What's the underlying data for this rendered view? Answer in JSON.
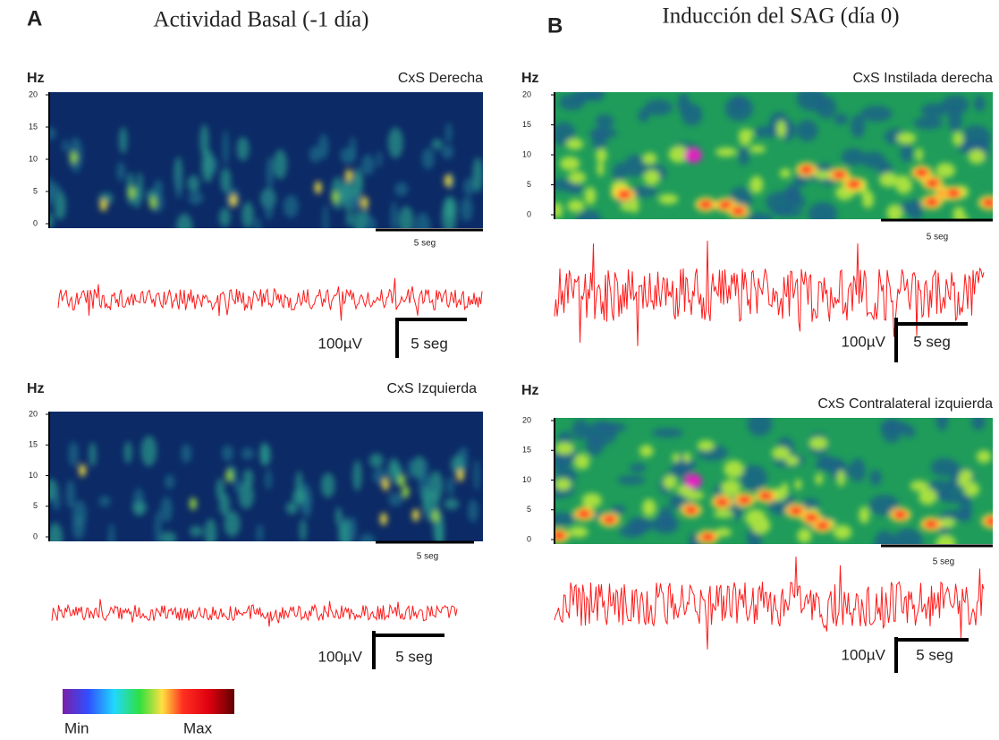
{
  "panels": [
    {
      "letter": "A",
      "title": "Actividad Basal (-1 día)",
      "plots": [
        {
          "unit": "Hz",
          "label": "CxS Derecha",
          "yticks": [
            20,
            15,
            10,
            5,
            0
          ],
          "spectrogram_scale": "5 seg",
          "amplitude_scale": "100µV",
          "time_scale": "5 seg"
        },
        {
          "unit": "Hz",
          "label": "CxS Izquierda",
          "yticks": [
            20,
            15,
            10,
            5,
            0
          ],
          "spectrogram_scale": "5 seg",
          "amplitude_scale": "100µV",
          "time_scale": "5 seg"
        }
      ]
    },
    {
      "letter": "B",
      "title": "Inducción del SAG (día 0)",
      "plots": [
        {
          "unit": "Hz",
          "label": "CxS Instilada derecha",
          "yticks": [
            20,
            15,
            10,
            5,
            0
          ],
          "spectrogram_scale": "5 seg",
          "amplitude_scale": "100µV",
          "time_scale": "5 seg"
        },
        {
          "unit": "Hz",
          "label": "CxS Contralateral izquierda",
          "yticks": [
            20,
            15,
            10,
            5,
            0
          ],
          "spectrogram_scale": "5 seg",
          "amplitude_scale": "100µV",
          "time_scale": "5 seg"
        }
      ]
    }
  ],
  "colorbar": {
    "min": "Min",
    "max": "Max"
  }
}
